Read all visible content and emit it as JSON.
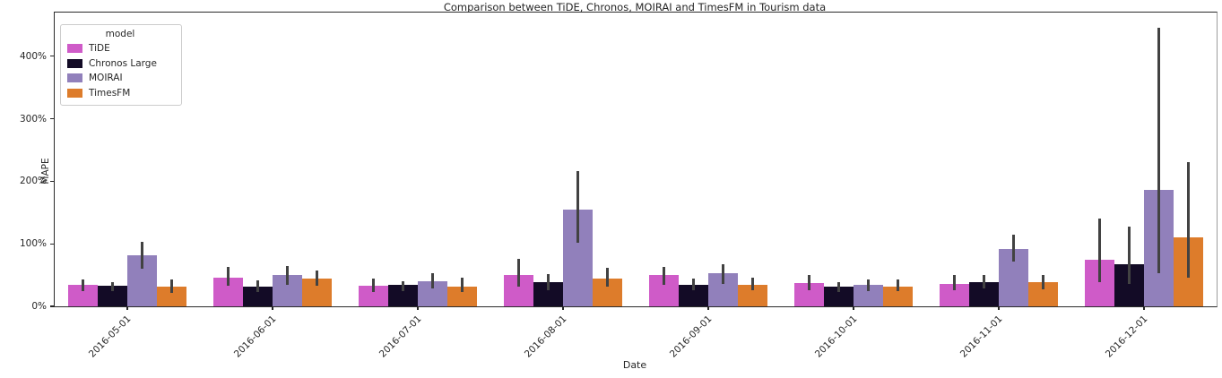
{
  "title": "Comparison between TiDE, Chronos, MOIRAI and TimesFM in Tourism data",
  "legend": {
    "title": "model",
    "position": "upper left"
  },
  "axes": {
    "xlabel": "Date",
    "ylabel": "MAPE"
  },
  "chart_data": {
    "type": "bar",
    "title": "Comparison between TiDE, Chronos, MOIRAI and TimesFM in Tourism data",
    "xlabel": "Date",
    "ylabel": "MAPE",
    "ylim": [
      0,
      470
    ],
    "grid": false,
    "legend_position": "upper left",
    "error_bar_color": "#424242",
    "yticks": [
      {
        "value": 0,
        "label": "0%"
      },
      {
        "value": 100,
        "label": "100%"
      },
      {
        "value": 200,
        "label": "200%"
      },
      {
        "value": 300,
        "label": "300%"
      },
      {
        "value": 400,
        "label": "400%"
      }
    ],
    "categories": [
      "2016-05-01",
      "2016-06-01",
      "2016-07-01",
      "2016-08-01",
      "2016-09-01",
      "2016-10-01",
      "2016-11-01",
      "2016-12-01"
    ],
    "value_unit": "percent MAPE",
    "series": [
      {
        "name": "TiDE",
        "color": "#cf5bc8",
        "values": [
          35,
          46,
          33,
          50,
          50,
          37,
          36,
          75
        ],
        "err_low": [
          25,
          33,
          23,
          32,
          35,
          26,
          26,
          38
        ],
        "err_high": [
          43,
          63,
          44,
          76,
          63,
          50,
          50,
          140
        ]
      },
      {
        "name": "Chronos Large",
        "color": "#130b26",
        "values": [
          33,
          32,
          34,
          38,
          35,
          31,
          39,
          68
        ],
        "err_low": [
          24,
          23,
          25,
          26,
          26,
          23,
          29,
          36
        ],
        "err_high": [
          39,
          41,
          40,
          52,
          45,
          38,
          50,
          127
        ]
      },
      {
        "name": "MOIRAI",
        "color": "#9180bb",
        "values": [
          82,
          50,
          40,
          155,
          53,
          34,
          92,
          186
        ],
        "err_low": [
          60,
          35,
          29,
          102,
          36,
          24,
          71,
          53
        ],
        "err_high": [
          103,
          64,
          53,
          216,
          67,
          43,
          114,
          445
        ]
      },
      {
        "name": "TimesFM",
        "color": "#dd7c2b",
        "values": [
          32,
          44,
          32,
          44,
          34,
          32,
          38,
          110
        ],
        "err_low": [
          21,
          33,
          23,
          31,
          26,
          24,
          27,
          46
        ],
        "err_high": [
          43,
          57,
          46,
          62,
          46,
          43,
          50,
          231
        ]
      }
    ]
  }
}
